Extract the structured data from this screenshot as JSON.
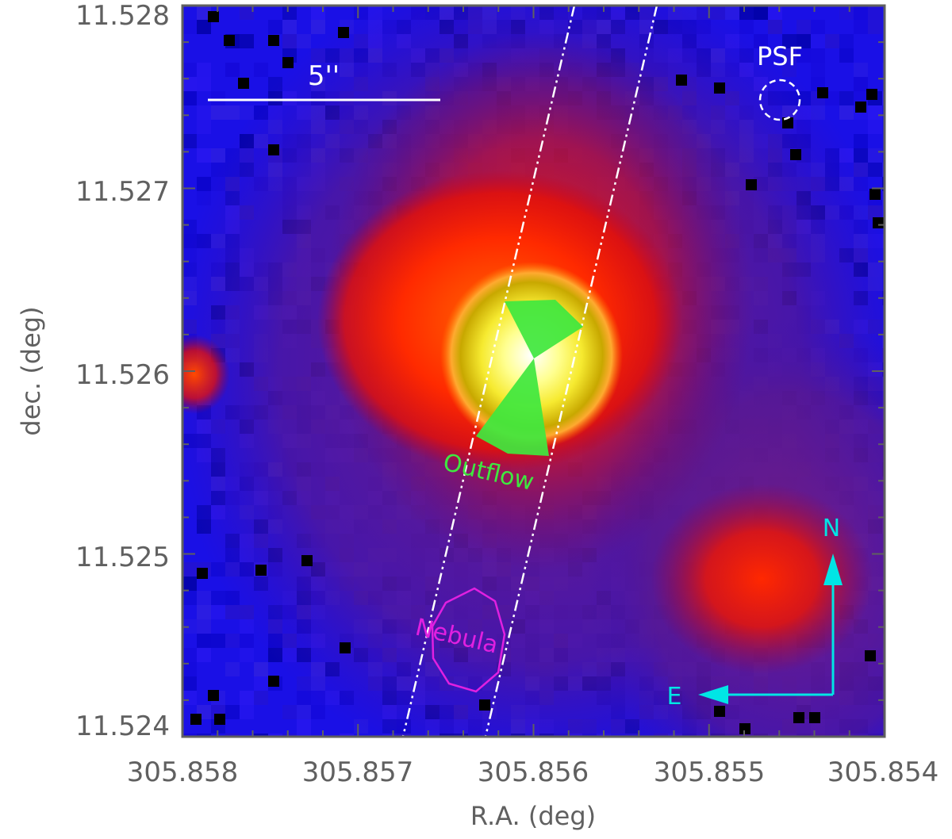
{
  "figure": {
    "x_ticks": [
      "305.858",
      "305.857",
      "305.856",
      "305.855",
      "305.854"
    ],
    "y_ticks": [
      "11.528",
      "11.527",
      "11.526",
      "11.525",
      "11.524"
    ],
    "xlabel": "R.A. (deg)",
    "ylabel": "dec. (deg)",
    "annotations": {
      "scale_bar": "5''",
      "psf": "PSF",
      "outflow": "Outflow",
      "nebula": "Nebula",
      "north": "N",
      "east": "E"
    },
    "colors": {
      "outflow": "#3fe83f",
      "nebula": "#e020e0",
      "compass": "#00e5e5",
      "annotation": "#ffffff",
      "axis": "#606060"
    }
  }
}
